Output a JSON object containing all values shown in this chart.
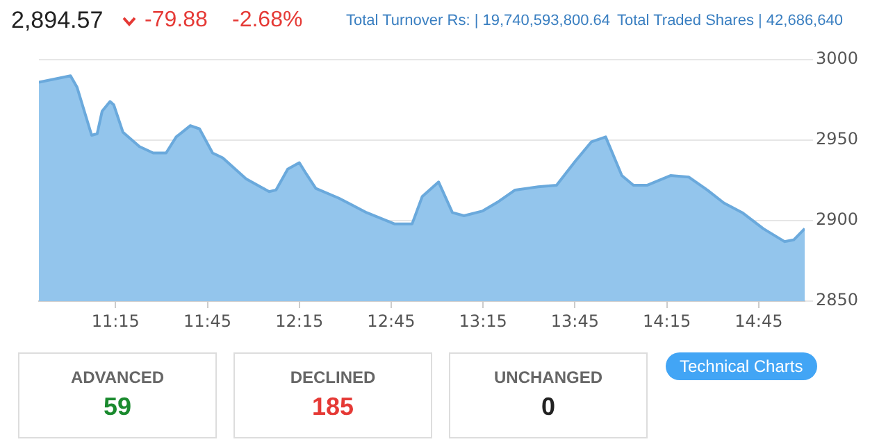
{
  "chart_data": {
    "type": "area",
    "color": "#93c5ec",
    "series": [
      {
        "color": "#6aa9dc",
        "x": [
          10.833,
          11.005,
          11.04,
          11.12,
          11.15,
          11.177,
          11.22,
          11.24,
          11.29,
          11.38,
          11.455,
          11.525,
          11.58,
          11.657,
          11.707,
          11.778,
          11.833,
          11.96,
          12.086,
          12.123,
          12.187,
          12.25,
          12.288,
          12.34,
          12.464,
          12.616,
          12.767,
          12.864,
          12.919,
          13.008,
          13.083,
          13.146,
          13.248,
          13.336,
          13.424,
          13.55,
          13.65,
          13.752,
          13.84,
          13.917,
          14.005,
          14.068,
          14.144,
          14.27,
          14.37,
          14.47,
          14.56,
          14.66,
          14.775,
          14.89,
          14.94,
          15.0
        ],
        "values": [
          2986,
          2990,
          2983,
          2953,
          2954,
          2968,
          2974,
          2972,
          2955,
          2946,
          2942,
          2942,
          2952,
          2959,
          2957,
          2942,
          2939,
          2926,
          2918,
          2919,
          2932,
          2936,
          2929,
          2920,
          2914,
          2905,
          2898,
          2898,
          2915,
          2924,
          2905,
          2903,
          2906,
          2912,
          2919,
          2921,
          2922,
          2937,
          2949,
          2952,
          2928,
          2922,
          2922,
          2928,
          2927,
          2919,
          2911,
          2905,
          2895,
          2887,
          2888,
          2895
        ]
      }
    ],
    "xlim": [
      10.833,
      15.0
    ],
    "xticks": [
      {
        "value": 11.25,
        "label": "11:15"
      },
      {
        "value": 11.75,
        "label": "11:45"
      },
      {
        "value": 12.25,
        "label": "12:15"
      },
      {
        "value": 12.75,
        "label": "12:45"
      },
      {
        "value": 13.25,
        "label": "13:15"
      },
      {
        "value": 13.75,
        "label": "13:45"
      },
      {
        "value": 14.25,
        "label": "14:15"
      },
      {
        "value": 14.75,
        "label": "14:45"
      }
    ],
    "ylim": [
      2850,
      3000
    ],
    "yticks": [
      2850,
      2900,
      2950,
      3000
    ],
    "grid": "y",
    "legend": false,
    "marker": "none",
    "annotations": [
      "2,894.57",
      "-79.88",
      "-2.68%",
      "Total Turnover Rs: | 19,740,593,800.64",
      "Total Traded Shares | 42,686,640",
      "ADVANCED",
      "59",
      "DECLINED",
      "185",
      "UNCHANGED",
      "0",
      "Technical Charts"
    ]
  }
}
